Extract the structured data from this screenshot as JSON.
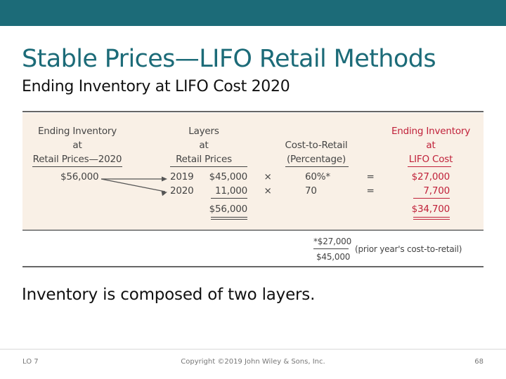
{
  "title": "Stable Prices—LIFO Retail Methods",
  "subtitle": "Ending Inventory at LIFO Cost 2020",
  "table": {
    "col1_header": [
      "Ending Inventory",
      "at",
      "Retail Prices—2020"
    ],
    "col2_header": [
      "Layers",
      "at",
      "Retail Prices"
    ],
    "col3_header": [
      "Cost-to-Retail",
      "(Percentage)"
    ],
    "col4_header": [
      "Ending Inventory",
      "at",
      "LIFO Cost"
    ],
    "ending_retail": "$56,000",
    "rows": [
      {
        "year": "2019",
        "retail": "$45,000",
        "op": "×",
        "pct": "60%*",
        "eq": "=",
        "cost": "$27,000"
      },
      {
        "year": "2020",
        "retail": "11,000",
        "op": "×",
        "pct": "70",
        "eq": "=",
        "cost": "7,700"
      }
    ],
    "retail_total": "$56,000",
    "cost_total": "$34,700",
    "footnote": {
      "numerator": "*$27,000",
      "denominator": "$45,000",
      "note": "(prior year's cost-to-retail)"
    }
  },
  "body_text": "Inventory is composed of two layers.",
  "footer": {
    "left": "LO 7",
    "center": "Copyright ©2019 John Wiley & Sons, Inc.",
    "page": "68"
  },
  "colors": {
    "brand": "#1c6b78",
    "panel": "#f9f0e6",
    "accent": "#c0213a"
  }
}
